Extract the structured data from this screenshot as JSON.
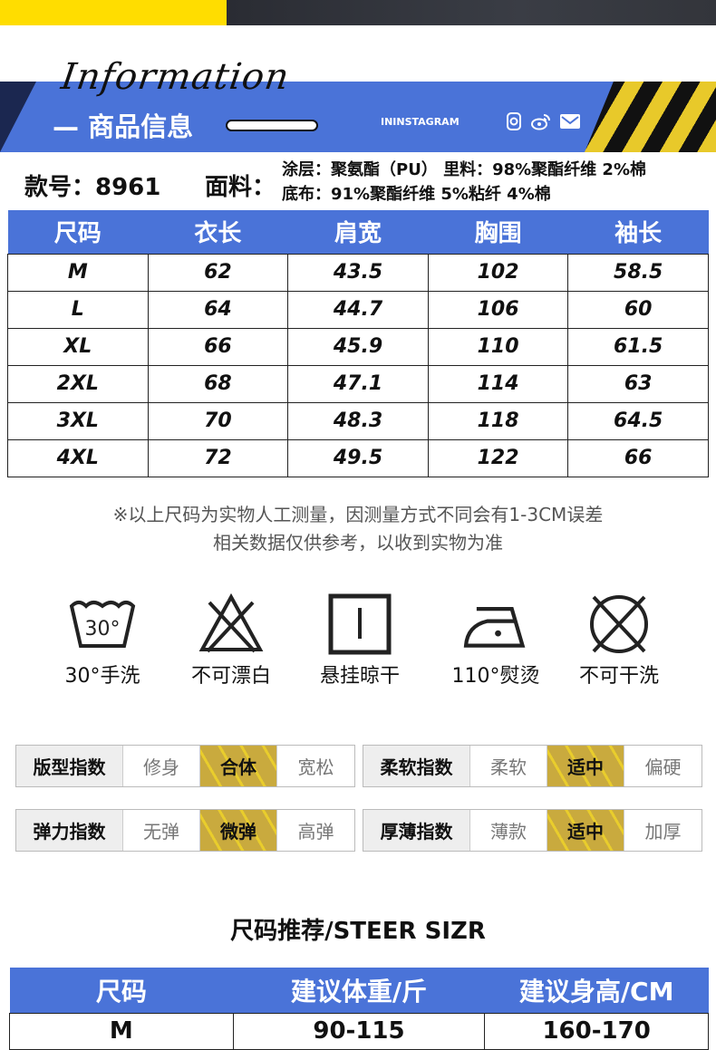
{
  "header": {
    "script_title": "Information",
    "title": "— 商品信息",
    "instagram": "ININSTAGRAM",
    "icons": [
      "instagram-icon",
      "weibo-icon",
      "mail-icon"
    ]
  },
  "info": {
    "style_no": "款号：8961",
    "fabric_label": "面料：",
    "fabric_line1": "涂层：聚氨酯（PU） 里料：98%聚酯纤维 2%棉",
    "fabric_line2": "底布：91%聚酯纤维 5%粘纤 4%棉"
  },
  "size_table": {
    "headers": [
      "尺码",
      "衣长",
      "肩宽",
      "胸围",
      "袖长"
    ],
    "rows": [
      [
        "M",
        "62",
        "43.5",
        "102",
        "58.5"
      ],
      [
        "L",
        "64",
        "44.7",
        "106",
        "60"
      ],
      [
        "XL",
        "66",
        "45.9",
        "110",
        "61.5"
      ],
      [
        "2XL",
        "68",
        "47.1",
        "114",
        "63"
      ],
      [
        "3XL",
        "70",
        "48.3",
        "118",
        "64.5"
      ],
      [
        "4XL",
        "72",
        "49.5",
        "122",
        "66"
      ]
    ]
  },
  "note": {
    "line1": "※以上尺码为实物人工测量，因测量方式不同会有1-3CM误差",
    "line2": "相关数据仅供参考，以收到实物为准"
  },
  "care": [
    {
      "icon": "wash-30-icon",
      "label": "30°手洗",
      "symbol": "30°"
    },
    {
      "icon": "no-bleach-icon",
      "label": "不可漂白"
    },
    {
      "icon": "hang-dry-icon",
      "label": "悬挂晾干"
    },
    {
      "icon": "iron-icon",
      "label": "110°熨烫"
    },
    {
      "icon": "no-dry-clean-icon",
      "label": "不可干洗"
    }
  ],
  "indices": [
    {
      "label": "版型指数",
      "options": [
        "修身",
        "合体",
        "宽松"
      ],
      "selected": 1
    },
    {
      "label": "柔软指数",
      "options": [
        "柔软",
        "适中",
        "偏硬"
      ],
      "selected": 1
    },
    {
      "label": "弹力指数",
      "options": [
        "无弹",
        "微弹",
        "高弹"
      ],
      "selected": 1
    },
    {
      "label": "厚薄指数",
      "options": [
        "薄款",
        "适中",
        "加厚"
      ],
      "selected": 1
    }
  ],
  "recommend": {
    "title": "尺码推荐/STEER SIZR",
    "headers": [
      "尺码",
      "建议体重/斤",
      "建议身高/CM"
    ],
    "rows": [
      [
        "M",
        "90-115",
        "160-170"
      ]
    ]
  },
  "colors": {
    "blue": "#4a73d8",
    "yellow": "#ffdd00",
    "gold": "#c9aa3e"
  }
}
